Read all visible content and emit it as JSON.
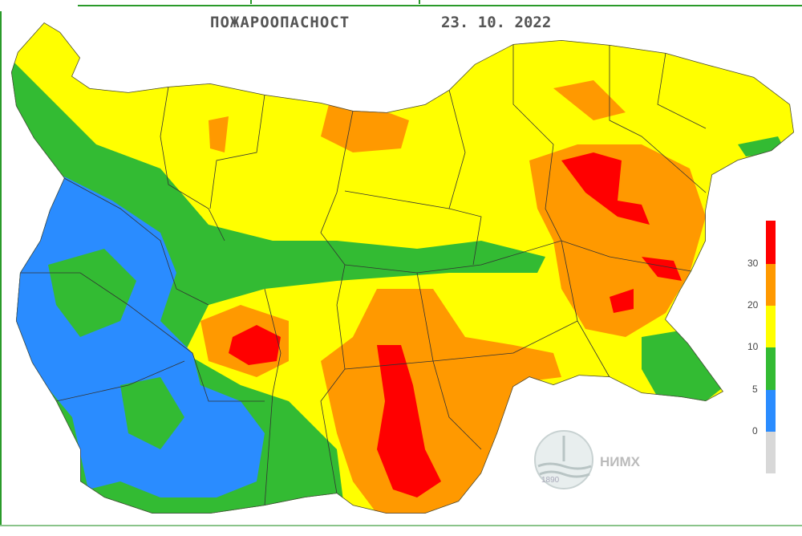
{
  "title": "ПОЖАРООПАСНОСТ",
  "date": "23. 10. 2022",
  "legend": {
    "ticks": [
      "30",
      "20",
      "10",
      "5",
      "0"
    ],
    "colors": {
      "very_high": "#ff0000",
      "high": "#ff9900",
      "moderate": "#ffff00",
      "low": "#33bb33",
      "very_low": "#2a8cff",
      "none": "#d8d8d8"
    }
  },
  "logo": {
    "text": "НИМХ",
    "year": "1890"
  },
  "icons": {
    "logo": "nimh-logo"
  }
}
